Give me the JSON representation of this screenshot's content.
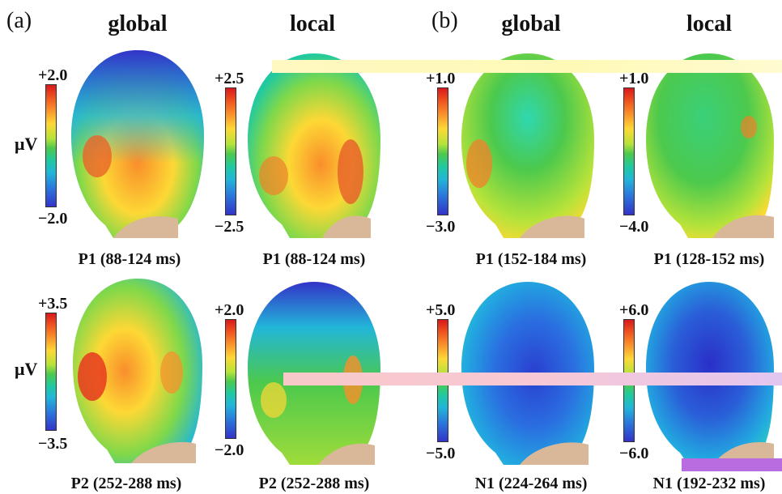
{
  "panels": {
    "a": {
      "tag": "(a)",
      "col_global": "global",
      "col_local": "local"
    },
    "b": {
      "tag": "(b)",
      "col_global": "global",
      "col_local": "local"
    }
  },
  "unit": "μV",
  "maps": [
    {
      "id": "a-global-p1",
      "max": "+2.0",
      "min": "−2.0",
      "caption": "P1 (88-124 ms)",
      "scheme": "warm"
    },
    {
      "id": "a-local-p1",
      "max": "+2.5",
      "min": "−2.5",
      "caption": "P1 (88-124 ms)",
      "scheme": "warm"
    },
    {
      "id": "b-global-p1",
      "max": "+1.0",
      "min": "−3.0",
      "caption": "P1 (152-184 ms)",
      "scheme": "green"
    },
    {
      "id": "b-local-p1",
      "max": "+1.0",
      "min": "−4.0",
      "caption": "P1 (128-152 ms)",
      "scheme": "green"
    },
    {
      "id": "a-global-p2",
      "max": "+3.5",
      "min": "−3.5",
      "caption": "P2 (252-288 ms)",
      "scheme": "warm"
    },
    {
      "id": "a-local-p2",
      "max": "+2.0",
      "min": "−2.0",
      "caption": "P2 (252-288 ms)",
      "scheme": "warm"
    },
    {
      "id": "b-global-n1",
      "max": "+5.0",
      "min": "−5.0",
      "caption": "N1 (224-264 ms)",
      "scheme": "blue"
    },
    {
      "id": "b-local-n1",
      "max": "+6.0",
      "min": "−6.0",
      "caption": "N1 (192-232 ms)",
      "scheme": "blue"
    }
  ],
  "colors": {
    "red": "#d7191c",
    "orange": "#f98e2b",
    "yellow": "#fdd835",
    "green": "#4cc94d",
    "cyan": "#22b6d8",
    "blue": "#2a7bdc",
    "navy": "#3333c8",
    "neck": "#d9b89a"
  }
}
